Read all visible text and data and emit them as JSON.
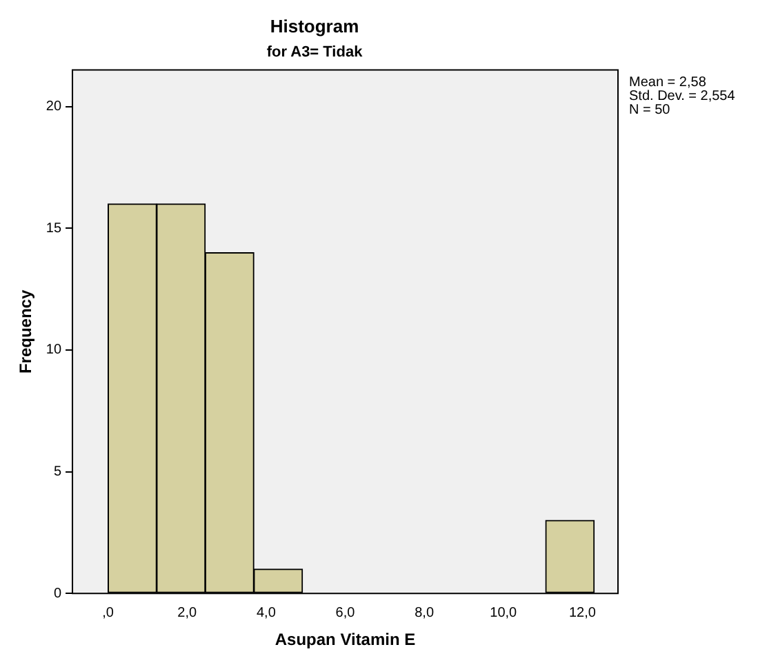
{
  "chart_data": {
    "type": "histogram",
    "title": "Histogram",
    "subtitle": "for A3= Tidak",
    "xlabel": "Asupan Vitamin E",
    "ylabel": "Frequency",
    "bins": [
      0,
      1.23,
      2.46,
      3.69,
      4.92,
      6.15,
      7.38,
      8.61,
      9.84,
      11.07,
      12.3
    ],
    "values": [
      16,
      16,
      14,
      1,
      0,
      0,
      0,
      0,
      0,
      3
    ],
    "color": "#d6d1a0",
    "xlim": [
      -0.9,
      12.9
    ],
    "xticks": [
      {
        "value": 0,
        "label": ",0"
      },
      {
        "value": 2,
        "label": "2,0"
      },
      {
        "value": 4,
        "label": "4,0"
      },
      {
        "value": 6,
        "label": "6,0"
      },
      {
        "value": 8,
        "label": "8,0"
      },
      {
        "value": 10,
        "label": "10,0"
      },
      {
        "value": 12,
        "label": "12,0"
      }
    ],
    "ylim": [
      0,
      21.5
    ],
    "yticks": [
      0,
      5,
      10,
      15,
      20
    ],
    "annotations": [
      "Mean = 2,58",
      "Std. Dev. = 2,554",
      "N = 50"
    ],
    "grid": false,
    "legend": false
  }
}
